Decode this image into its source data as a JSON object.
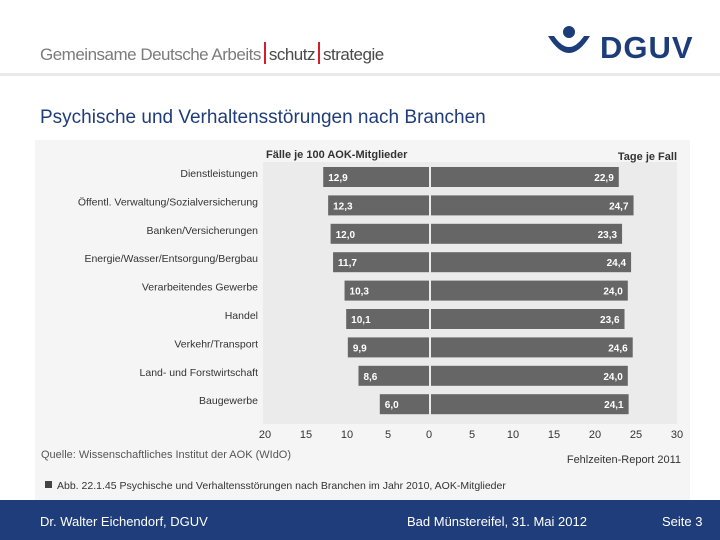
{
  "header": {
    "brand_part1": "Gemeinsame Deutsche Arbeits",
    "brand_part2": "schutz",
    "brand_part3": "strategie",
    "logo_text": "DGUV"
  },
  "slide_title": "Psychische und Verhaltensstörungen nach Branchen",
  "chart_data": {
    "type": "bar",
    "left_header": "Fälle je 100 AOK-Mitglieder",
    "right_header": "Tage je Fall",
    "categories": [
      "Dienstleistungen",
      "Öffentl. Verwaltung/Sozialversicherung",
      "Banken/Versicherungen",
      "Energie/Wasser/Entsorgung/Bergbau",
      "Verarbeitendes Gewerbe",
      "Handel",
      "Verkehr/Transport",
      "Land- und Forstwirtschaft",
      "Baugewerbe"
    ],
    "series": [
      {
        "name": "Fälle je 100 AOK-Mitglieder",
        "values": [
          12.9,
          12.3,
          12.0,
          11.7,
          10.3,
          10.1,
          9.9,
          8.6,
          6.0
        ],
        "labels": [
          "12,9",
          "12,3",
          "12,0",
          "11,7",
          "10,3",
          "10,1",
          "9,9",
          "8,6",
          "6,0"
        ]
      },
      {
        "name": "Tage je Fall",
        "values": [
          22.9,
          24.7,
          23.3,
          24.4,
          24.0,
          23.6,
          24.6,
          24.0,
          24.1
        ],
        "labels": [
          "22,9",
          "24,7",
          "23,3",
          "24,4",
          "24,0",
          "23,6",
          "24,6",
          "24,0",
          "24,1"
        ]
      }
    ],
    "left_axis": {
      "range": [
        20,
        0
      ],
      "ticks": [
        "20",
        "15",
        "10",
        "5",
        "0"
      ]
    },
    "right_axis": {
      "range": [
        0,
        30
      ],
      "ticks": [
        "5",
        "10",
        "15",
        "20",
        "25",
        "30"
      ]
    },
    "source": "Quelle: Wissenschaftliches Institut der AOK (WIdO)",
    "report": "Fehlzeiten-Report 2011",
    "caption": "Abb. 22.1.45 Psychische und Verhaltensstörungen nach Branchen im Jahr 2010, AOK-Mitglieder",
    "colors": {
      "bar": "#666666",
      "label": "#ffffff",
      "background": "#f5f5f5",
      "gridline": "#ffffff"
    }
  },
  "footer": {
    "author": "Dr. Walter Eichendorf, DGUV",
    "event": "Bad Münstereifel, 31. Mai 2012",
    "page": "Seite 3"
  }
}
